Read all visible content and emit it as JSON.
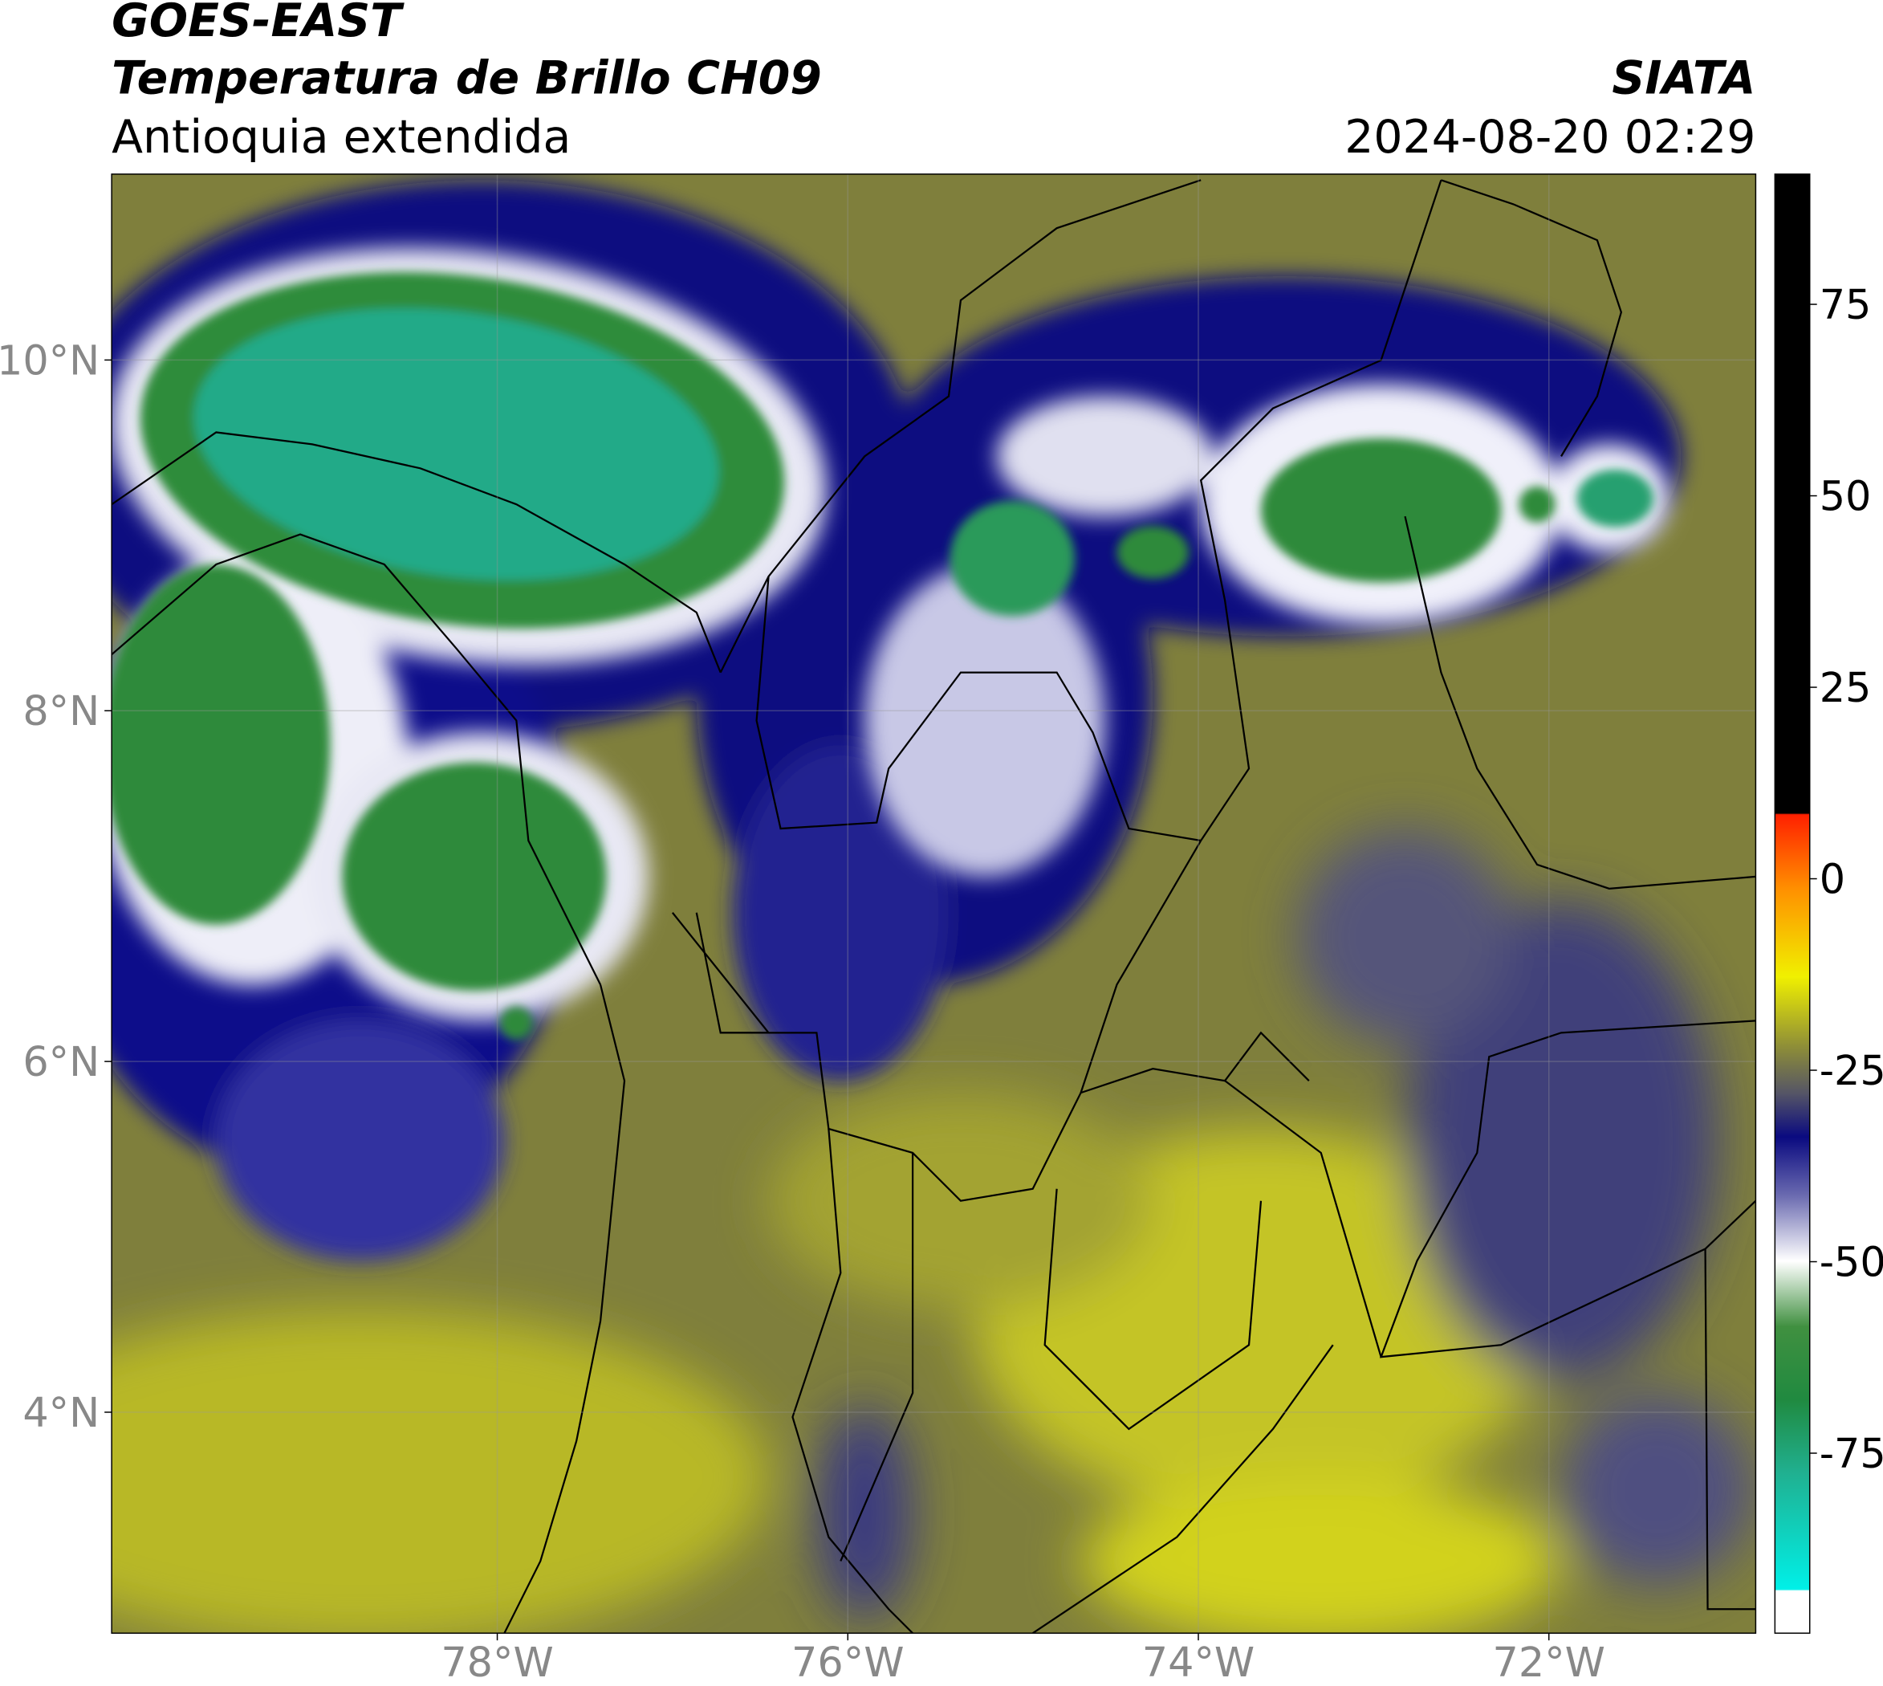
{
  "header": {
    "title": "GOES-EAST",
    "subtitle": "Temperatura de Brillo CH09",
    "region": "Antioquia extendida",
    "source": "SIATA",
    "datetime": "2024-08-20 02:29"
  },
  "map": {
    "xlim": [
      -80.2,
      -70.82
    ],
    "ylim": [
      2.74,
      11.06
    ],
    "xticks": [
      {
        "value": -78,
        "label": "78°W"
      },
      {
        "value": -76,
        "label": "76°W"
      },
      {
        "value": -74,
        "label": "74°W"
      },
      {
        "value": -72,
        "label": "72°W"
      }
    ],
    "yticks": [
      {
        "value": 10,
        "label": "10°N"
      },
      {
        "value": 8,
        "label": "8°N"
      },
      {
        "value": 6,
        "label": "6°N"
      },
      {
        "value": 4,
        "label": "4°N"
      }
    ],
    "grid": true
  },
  "colorbar": {
    "lim": [
      -98.5,
      92
    ],
    "ticks": [
      75,
      50,
      25,
      0,
      -25,
      -50,
      -75
    ]
  }
}
